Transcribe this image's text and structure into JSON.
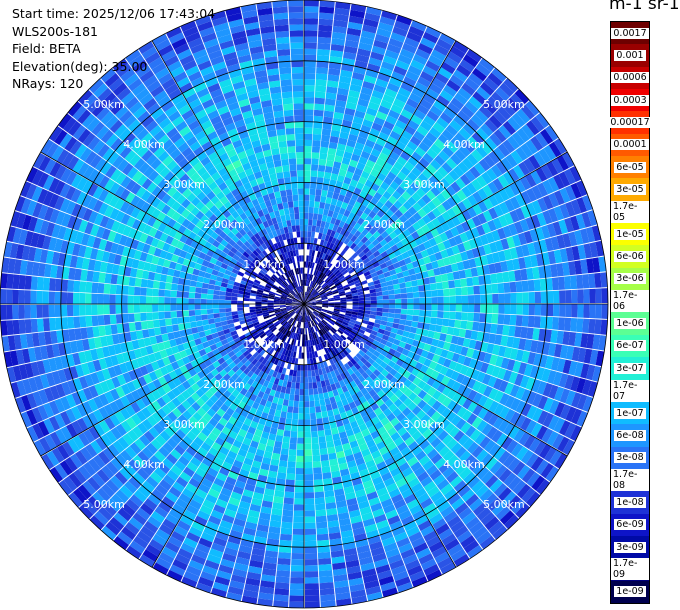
{
  "info": {
    "start_time": "Start time: 2025/12/06 17:43:04",
    "instrument": "WLS200s-181",
    "field": "Field: BETA",
    "elevation": "Elevation(deg): 35.00",
    "nrays": "NRays: 120"
  },
  "colorbar": {
    "title": "m-1 sr-1",
    "labels": [
      "0.0017",
      "0.001",
      "0.0006",
      "0.0003",
      "0.00017",
      "0.0001",
      "6e-05",
      "3e-05",
      "1.7e-05",
      "1e-05",
      "6e-06",
      "3e-06",
      "1.7e-06",
      "1e-06",
      "6e-07",
      "3e-07",
      "1.7e-07",
      "1e-07",
      "6e-08",
      "3e-08",
      "1.7e-08",
      "1e-08",
      "6e-09",
      "3e-09",
      "1.7e-09",
      "1e-09"
    ],
    "colors": [
      "#6e0000",
      "#9a0000",
      "#c80000",
      "#f00000",
      "#ff3000",
      "#ff5a00",
      "#ff8000",
      "#ffaa00",
      "#ffd400",
      "#fcff00",
      "#d2ff22",
      "#a6ff48",
      "#7eff6e",
      "#5cff94",
      "#3affb6",
      "#22f0d6",
      "#12dcee",
      "#10bcff",
      "#1e96ff",
      "#2a74f6",
      "#2a54e6",
      "#1e32d6",
      "#0e14c8",
      "#000aa6",
      "#00007c",
      "#00004e"
    ]
  },
  "chart_data": {
    "type": "heatmap",
    "projection": "polar PPI (plan position indicator)",
    "field": "BETA",
    "units": "m-1 sr-1",
    "scale": "logarithmic",
    "value_range": [
      1e-09,
      0.0017
    ],
    "elevation_deg": 35.0,
    "n_rays": 120,
    "max_range_km": 5.0,
    "range_rings_km": [
      1,
      2,
      3,
      4,
      5
    ],
    "ring_labels": [
      "1.00km",
      "2.00km",
      "3.00km",
      "4.00km",
      "5.00km"
    ],
    "azimuth_spokes_deg": [
      0,
      30,
      60,
      90,
      120,
      150,
      180,
      210,
      240,
      270,
      300,
      330
    ],
    "radial_profile": [
      {
        "range_km": 0.5,
        "value": 3e-09
      },
      {
        "range_km": 1.0,
        "value": 1e-08
      },
      {
        "range_km": 1.5,
        "value": 6e-08
      },
      {
        "range_km": 2.0,
        "value": 1e-07
      },
      {
        "range_km": 2.5,
        "value": 1.7e-07
      },
      {
        "range_km": 3.0,
        "value": 1e-07
      },
      {
        "range_km": 3.5,
        "value": 1e-07
      },
      {
        "range_km": 4.0,
        "value": 6e-08
      },
      {
        "range_km": 4.5,
        "value": 3e-08
      },
      {
        "range_km": 5.0,
        "value": 1.7e-08
      }
    ]
  }
}
